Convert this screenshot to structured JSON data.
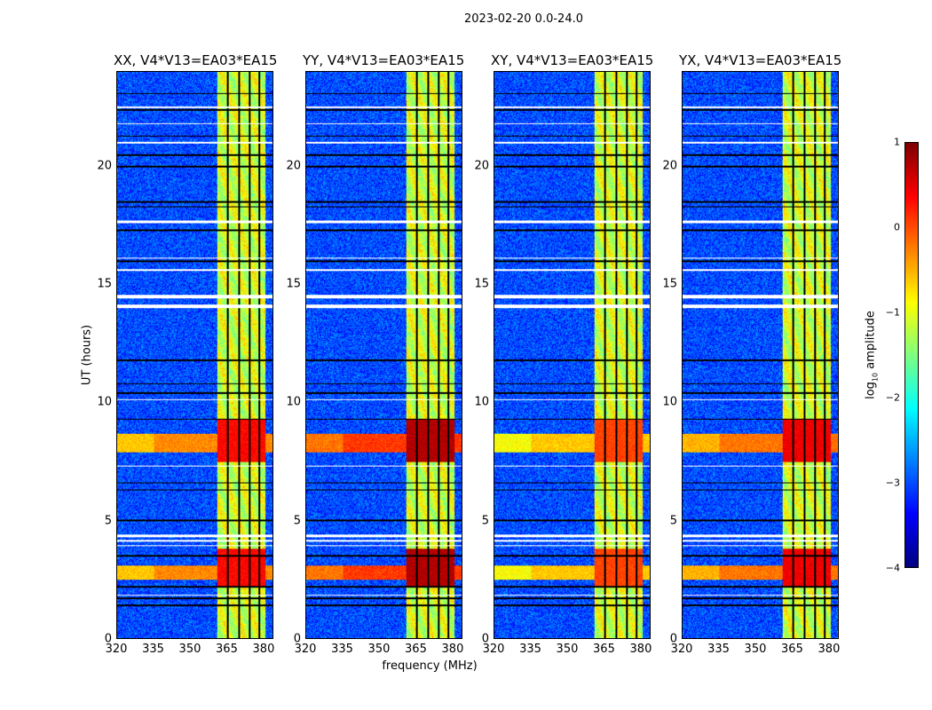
{
  "chart_data": {
    "type": "heatmap",
    "title": "2023-02-20 0.0-24.0",
    "xlabel": "frequency (MHz)",
    "ylabel": "UT (hours)",
    "xlim": [
      320,
      384
    ],
    "ylim": [
      0,
      24
    ],
    "xticks": [
      "320",
      "335",
      "350",
      "365",
      "380"
    ],
    "xtick_values": [
      320,
      335,
      350,
      365,
      380
    ],
    "yticks": [
      "0",
      "5",
      "10",
      "15",
      "20"
    ],
    "ytick_values": [
      0,
      5,
      10,
      15,
      20
    ],
    "colorbar": {
      "label_main": "log",
      "label_sub": "10",
      "label_rest": " amplitude",
      "colormap": "jet",
      "range": [
        -4,
        1
      ],
      "ticks": [
        "1",
        "0",
        "−1",
        "−2",
        "−3",
        "−4"
      ],
      "tick_values": [
        1,
        0,
        -1,
        -2,
        -3,
        -4
      ]
    },
    "panels": [
      {
        "title": "XX, V4*V13=EA03*EA15",
        "pol": "XX",
        "bright_rfi_level": -0.3
      },
      {
        "title": "YY, V4*V13=EA03*EA15",
        "pol": "YY",
        "bright_rfi_level": 0.1
      },
      {
        "title": "XY, V4*V13=EA03*EA15",
        "pol": "XY",
        "bright_rfi_level": -0.6
      },
      {
        "title": "YX, V4*V13=EA03*EA15",
        "pol": "YX",
        "bright_rfi_level": -0.2
      }
    ],
    "background_level": -3.0,
    "signal_band_mhz": [
      361,
      381
    ],
    "signal_band_level": -1.1,
    "subband_gaps_mhz": [
      365.5,
      370,
      374.5,
      378.5
    ],
    "broadband_rfi_hours": [
      [
        2.5,
        3.1
      ],
      [
        7.9,
        8.7
      ]
    ],
    "strong_band_hours": [
      [
        2.2,
        3.8
      ],
      [
        7.5,
        9.3
      ]
    ],
    "flagged_hours": [
      [
        4.1,
        4.2
      ],
      [
        4.3,
        4.4
      ],
      [
        14.0,
        14.15
      ],
      [
        14.4,
        14.55
      ],
      [
        17.6,
        17.7
      ],
      [
        21.0,
        21.05
      ],
      [
        15.6,
        15.65
      ],
      [
        16.1,
        16.15
      ],
      [
        22.5,
        22.55
      ],
      [
        21.8,
        21.85
      ],
      [
        7.3,
        7.35
      ],
      [
        10.1,
        10.15
      ],
      [
        1.8,
        1.85
      ],
      [
        3.9,
        3.95
      ]
    ],
    "dropout_hours": [
      1.4,
      1.7,
      2.2,
      3.5,
      5.0,
      6.3,
      6.6,
      9.3,
      10.4,
      10.8,
      11.8,
      16.0,
      17.3,
      18.3,
      18.5,
      20.0,
      20.5,
      21.3,
      22.4,
      23.1
    ]
  }
}
